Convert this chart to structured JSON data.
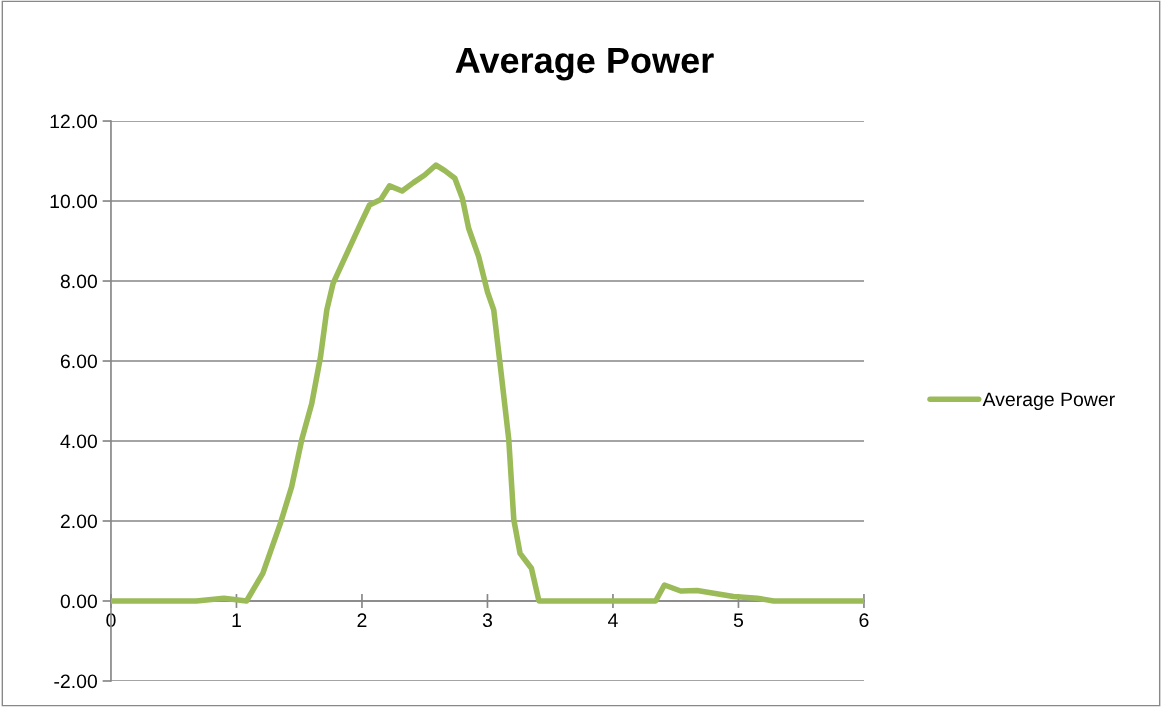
{
  "chart_data": {
    "type": "line",
    "title": "Average Power",
    "series": [
      {
        "name": "Average Power",
        "color": "#9bbb59",
        "x": [
          0,
          0.68,
          0.9,
          1.08,
          1.21,
          1.35,
          1.44,
          1.52,
          1.6,
          1.67,
          1.72,
          1.77,
          1.88,
          1.99,
          2.06,
          2.15,
          2.22,
          2.32,
          2.41,
          2.5,
          2.59,
          2.66,
          2.74,
          2.8,
          2.85,
          2.93,
          3.0,
          3.05,
          3.1,
          3.17,
          3.21,
          3.26,
          3.35,
          3.41,
          4.34,
          4.41,
          4.54,
          4.67,
          4.96,
          5.15,
          5.28,
          6.0
        ],
        "values": [
          0,
          0,
          0.07,
          0,
          0.69,
          1.94,
          2.86,
          4.03,
          4.94,
          6.11,
          7.28,
          7.94,
          8.69,
          9.44,
          9.9,
          10.04,
          10.38,
          10.25,
          10.46,
          10.65,
          10.9,
          10.76,
          10.57,
          10.07,
          9.32,
          8.61,
          7.73,
          7.28,
          5.94,
          4.03,
          2.03,
          1.19,
          0.82,
          0,
          0,
          0.4,
          0.25,
          0.26,
          0.11,
          0.07,
          0,
          0
        ]
      }
    ],
    "xlim": [
      0,
      6
    ],
    "xticks": [
      0,
      1,
      2,
      3,
      4,
      5,
      6
    ],
    "ylim": [
      -2,
      12
    ],
    "yticks": [
      {
        "value": -2,
        "label": "-2.00"
      },
      {
        "value": 0,
        "label": "0.00"
      },
      {
        "value": 2,
        "label": "2.00"
      },
      {
        "value": 4,
        "label": "4.00"
      },
      {
        "value": 6,
        "label": "6.00"
      },
      {
        "value": 8,
        "label": "8.00"
      },
      {
        "value": 10,
        "label": "10.00"
      },
      {
        "value": 12,
        "label": "12.00"
      }
    ],
    "grid": "y",
    "legend": "right",
    "marker": "none",
    "line_style": "solid"
  }
}
